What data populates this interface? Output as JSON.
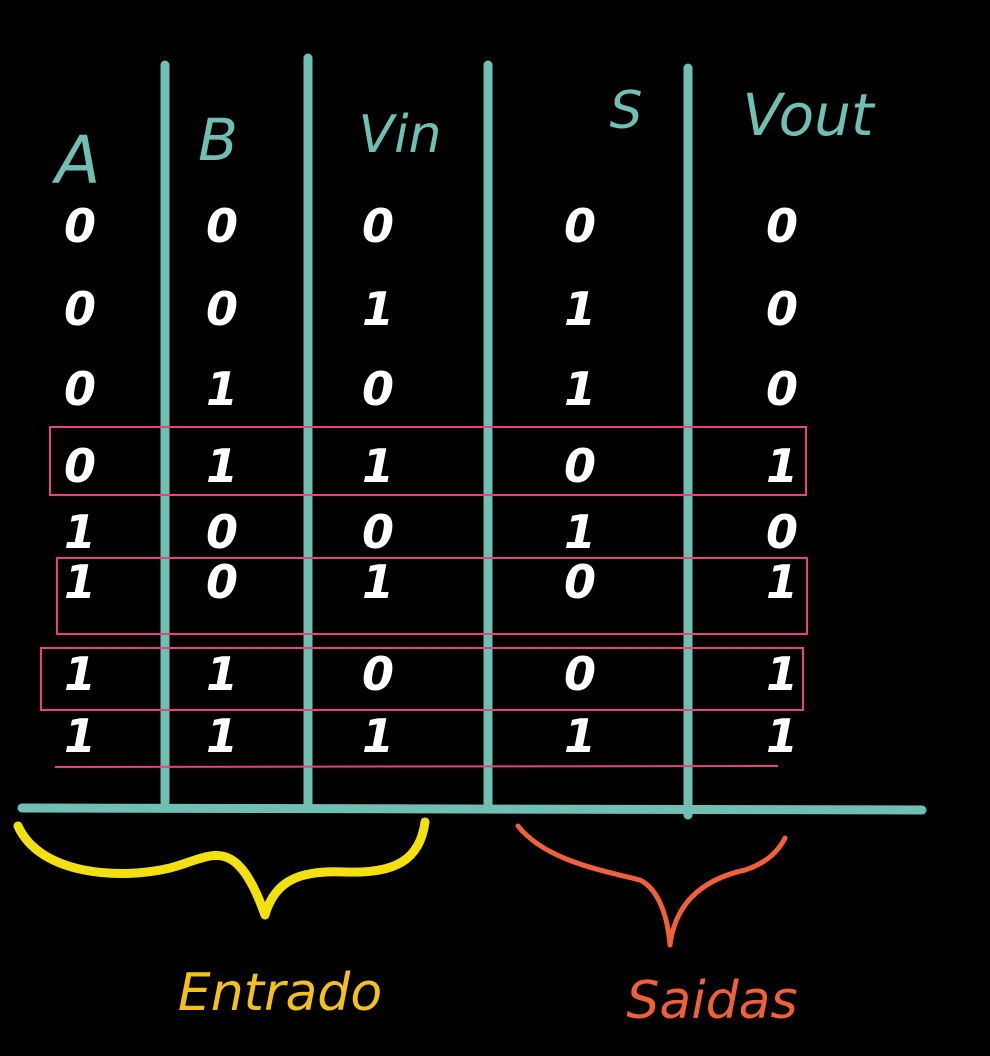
{
  "colors": {
    "background": "#000000",
    "grid": "#6fbfb2",
    "digits": "#ffffff",
    "highlight": "#e6457a",
    "input_brace": "#f2e10f",
    "output_brace": "#f0603a",
    "input_label": "#f2c21a",
    "output_label": "#f0603a"
  },
  "headers": [
    "A",
    "B",
    "Vin",
    "S",
    "Vout"
  ],
  "rows": [
    [
      "0",
      "0",
      "0",
      "0",
      "0"
    ],
    [
      "0",
      "0",
      "1",
      "1",
      "0"
    ],
    [
      "0",
      "1",
      "0",
      "1",
      "0"
    ],
    [
      "0",
      "1",
      "1",
      "0",
      "1"
    ],
    [
      "1",
      "0",
      "0",
      "1",
      "0"
    ],
    [
      "1",
      "0",
      "1",
      "0",
      "1"
    ],
    [
      "1",
      "1",
      "0",
      "0",
      "1"
    ],
    [
      "1",
      "1",
      "1",
      "1",
      "1"
    ]
  ],
  "highlighted_rows": [
    3,
    5,
    6
  ],
  "inputs_label": "Entrado",
  "outputs_label": "Saidas"
}
